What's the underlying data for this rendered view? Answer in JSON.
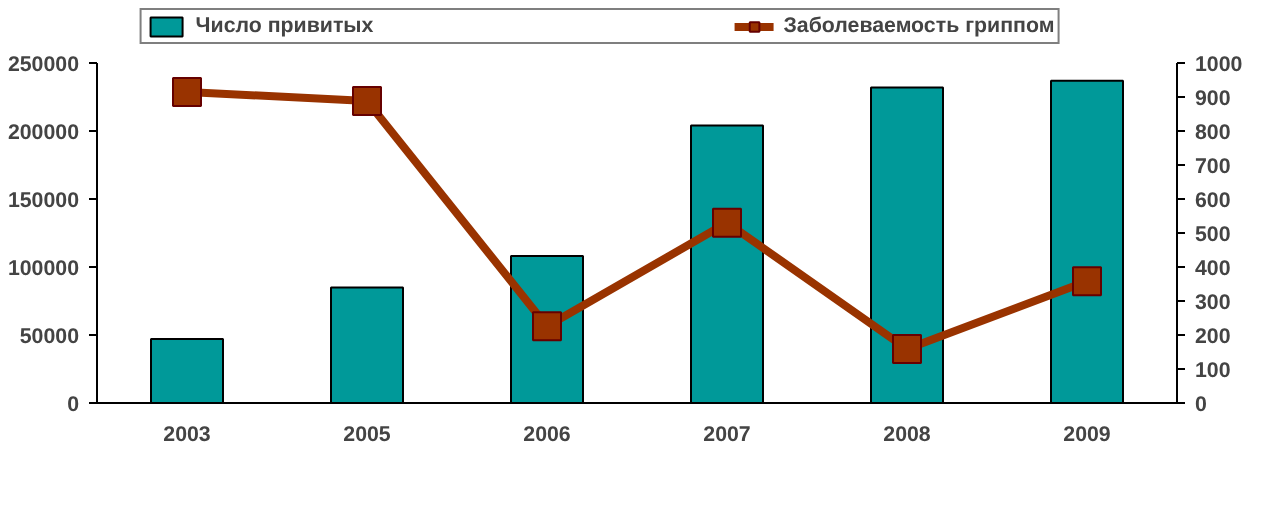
{
  "chart_data": {
    "type": "bar",
    "categories": [
      "2003",
      "2005",
      "2006",
      "2007",
      "2008",
      "2009"
    ],
    "series": [
      {
        "name": "Число привитых",
        "color": "#009999",
        "values": [
          47000,
          85000,
          108000,
          204000,
          232000,
          237000
        ]
      },
      {
        "name": "Заболеваемость гриппом",
        "type": "line",
        "axis": "y2",
        "color": "#993300",
        "marker": "square",
        "values": [
          915,
          888,
          226,
          530,
          159,
          358
        ]
      }
    ],
    "ylim": [
      0,
      250000
    ],
    "yticks": [
      0,
      50000,
      100000,
      150000,
      200000,
      250000
    ],
    "y2lim": [
      0,
      1000
    ],
    "y2ticks": [
      0,
      100,
      200,
      300,
      400,
      500,
      600,
      700,
      800,
      900,
      1000
    ],
    "grid": false,
    "legend": "top"
  }
}
